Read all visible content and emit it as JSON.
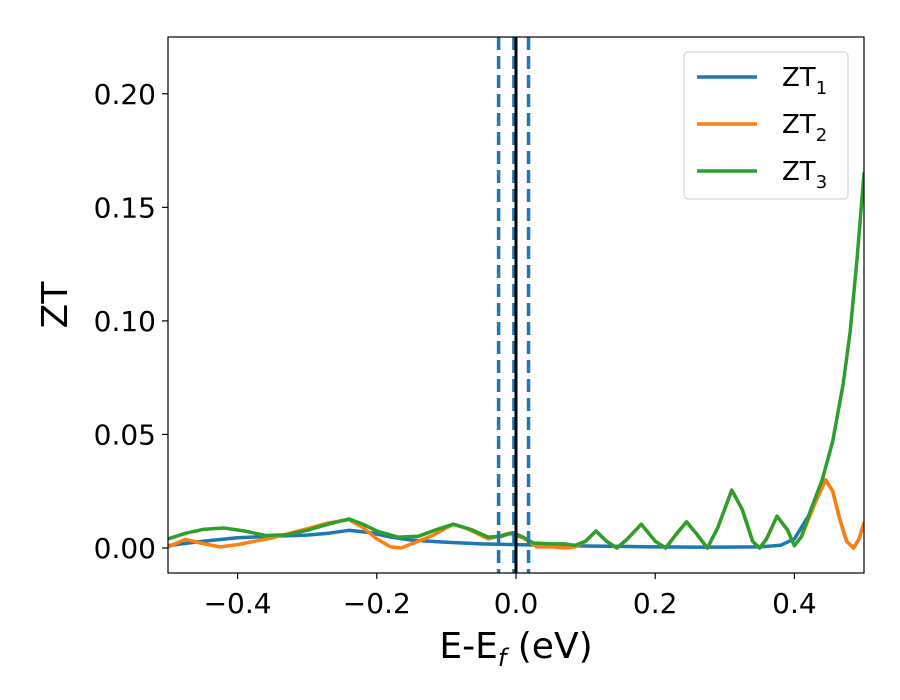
{
  "chart_data": {
    "type": "line",
    "xlabel": "E-E",
    "xlabel_sub": "f",
    "xlabel_unit": " (eV)",
    "ylabel": "ZT",
    "xlim": [
      -0.5,
      0.5
    ],
    "ylim": [
      -0.011,
      0.225
    ],
    "xticks": [
      -0.4,
      -0.2,
      0.0,
      0.2,
      0.4
    ],
    "xtick_labels": [
      "−0.4",
      "−0.2",
      "0.0",
      "0.2",
      "0.4"
    ],
    "yticks": [
      0.0,
      0.05,
      0.1,
      0.15,
      0.2
    ],
    "ytick_labels": [
      "0.00",
      "0.05",
      "0.10",
      "0.15",
      "0.20"
    ],
    "grid": false,
    "legend": "top-right",
    "vlines": [
      {
        "x": -0.025,
        "style": "dashed",
        "color": "#1f77b4"
      },
      {
        "x": -0.003,
        "style": "dashed",
        "color": "#1f77b4"
      },
      {
        "x": 0.018,
        "style": "dashed",
        "color": "#1f77b4"
      },
      {
        "x": 0.0,
        "style": "solid",
        "color": "#000000"
      }
    ],
    "series": [
      {
        "name": "ZT",
        "sub": "1",
        "color": "#1f77b4",
        "points": [
          [
            -0.5,
            0.001
          ],
          [
            -0.45,
            0.003
          ],
          [
            -0.4,
            0.0045
          ],
          [
            -0.35,
            0.0052
          ],
          [
            -0.3,
            0.0057
          ],
          [
            -0.27,
            0.0065
          ],
          [
            -0.24,
            0.0078
          ],
          [
            -0.21,
            0.0068
          ],
          [
            -0.18,
            0.0048
          ],
          [
            -0.15,
            0.0035
          ],
          [
            -0.1,
            0.0025
          ],
          [
            -0.05,
            0.0018
          ],
          [
            0.0,
            0.0015
          ],
          [
            0.05,
            0.0012
          ],
          [
            0.1,
            0.0009
          ],
          [
            0.15,
            0.0007
          ],
          [
            0.2,
            0.0005
          ],
          [
            0.25,
            0.0004
          ],
          [
            0.3,
            0.0004
          ],
          [
            0.35,
            0.0005
          ],
          [
            0.38,
            0.0012
          ],
          [
            0.4,
            0.004
          ],
          [
            0.42,
            0.014
          ],
          [
            0.435,
            0.025
          ],
          [
            0.445,
            0.03
          ],
          [
            0.455,
            0.025
          ],
          [
            0.465,
            0.013
          ],
          [
            0.475,
            0.003
          ],
          [
            0.485,
            0.0
          ],
          [
            0.493,
            0.004
          ],
          [
            0.5,
            0.011
          ]
        ]
      },
      {
        "name": "ZT",
        "sub": "2",
        "color": "#ff7f0e",
        "points": [
          [
            -0.5,
            0.0005
          ],
          [
            -0.475,
            0.0038
          ],
          [
            -0.45,
            0.002
          ],
          [
            -0.425,
            0.0005
          ],
          [
            -0.4,
            0.0015
          ],
          [
            -0.35,
            0.0045
          ],
          [
            -0.3,
            0.0085
          ],
          [
            -0.27,
            0.011
          ],
          [
            -0.24,
            0.0125
          ],
          [
            -0.22,
            0.009
          ],
          [
            -0.2,
            0.004
          ],
          [
            -0.18,
            0.0005
          ],
          [
            -0.165,
            0.0
          ],
          [
            -0.15,
            0.0018
          ],
          [
            -0.12,
            0.0055
          ],
          [
            -0.09,
            0.0105
          ],
          [
            -0.07,
            0.0085
          ],
          [
            -0.04,
            0.004
          ],
          [
            -0.01,
            0.0065
          ],
          [
            0.01,
            0.0045
          ],
          [
            0.03,
            0.0005
          ],
          [
            0.05,
            0.0006
          ],
          [
            0.07,
            0.0
          ],
          [
            0.085,
            0.0005
          ],
          [
            0.1,
            0.003
          ],
          [
            0.115,
            0.0075
          ],
          [
            0.13,
            0.003
          ],
          [
            0.145,
            0.0
          ],
          [
            0.16,
            0.004
          ],
          [
            0.18,
            0.0105
          ],
          [
            0.2,
            0.003
          ],
          [
            0.215,
            0.0
          ],
          [
            0.23,
            0.006
          ],
          [
            0.245,
            0.0115
          ],
          [
            0.26,
            0.006
          ],
          [
            0.275,
            0.0
          ],
          [
            0.29,
            0.009
          ],
          [
            0.31,
            0.0255
          ],
          [
            0.325,
            0.017
          ],
          [
            0.34,
            0.003
          ],
          [
            0.35,
            0.0
          ],
          [
            0.36,
            0.004
          ],
          [
            0.375,
            0.014
          ],
          [
            0.39,
            0.008
          ],
          [
            0.4,
            0.001
          ],
          [
            0.41,
            0.005
          ],
          [
            0.43,
            0.02
          ],
          [
            0.445,
            0.03
          ],
          [
            0.455,
            0.025
          ],
          [
            0.465,
            0.013
          ],
          [
            0.475,
            0.003
          ],
          [
            0.485,
            0.0
          ],
          [
            0.493,
            0.004
          ],
          [
            0.5,
            0.011
          ]
        ]
      },
      {
        "name": "ZT",
        "sub": "3",
        "color": "#2ca02c",
        "points": [
          [
            -0.5,
            0.004
          ],
          [
            -0.475,
            0.0065
          ],
          [
            -0.45,
            0.0082
          ],
          [
            -0.42,
            0.0088
          ],
          [
            -0.39,
            0.0075
          ],
          [
            -0.36,
            0.0055
          ],
          [
            -0.33,
            0.0058
          ],
          [
            -0.3,
            0.0078
          ],
          [
            -0.27,
            0.0105
          ],
          [
            -0.24,
            0.0128
          ],
          [
            -0.22,
            0.0105
          ],
          [
            -0.2,
            0.0075
          ],
          [
            -0.17,
            0.0048
          ],
          [
            -0.14,
            0.0052
          ],
          [
            -0.115,
            0.008
          ],
          [
            -0.09,
            0.0105
          ],
          [
            -0.065,
            0.0082
          ],
          [
            -0.04,
            0.0048
          ],
          [
            -0.02,
            0.0052
          ],
          [
            -0.005,
            0.0068
          ],
          [
            0.01,
            0.0048
          ],
          [
            0.025,
            0.0022
          ],
          [
            0.05,
            0.0018
          ],
          [
            0.07,
            0.0018
          ],
          [
            0.085,
            0.0012
          ],
          [
            0.1,
            0.003
          ],
          [
            0.115,
            0.0075
          ],
          [
            0.13,
            0.003
          ],
          [
            0.145,
            0.0
          ],
          [
            0.16,
            0.004
          ],
          [
            0.18,
            0.0105
          ],
          [
            0.2,
            0.003
          ],
          [
            0.215,
            0.0
          ],
          [
            0.23,
            0.006
          ],
          [
            0.245,
            0.0115
          ],
          [
            0.26,
            0.006
          ],
          [
            0.275,
            0.0
          ],
          [
            0.29,
            0.009
          ],
          [
            0.31,
            0.0255
          ],
          [
            0.325,
            0.017
          ],
          [
            0.34,
            0.003
          ],
          [
            0.35,
            0.0
          ],
          [
            0.36,
            0.004
          ],
          [
            0.375,
            0.014
          ],
          [
            0.39,
            0.008
          ],
          [
            0.4,
            0.001
          ],
          [
            0.41,
            0.005
          ],
          [
            0.425,
            0.018
          ],
          [
            0.44,
            0.03
          ],
          [
            0.455,
            0.047
          ],
          [
            0.47,
            0.072
          ],
          [
            0.48,
            0.095
          ],
          [
            0.49,
            0.127
          ],
          [
            0.5,
            0.165
          ]
        ]
      }
    ]
  }
}
